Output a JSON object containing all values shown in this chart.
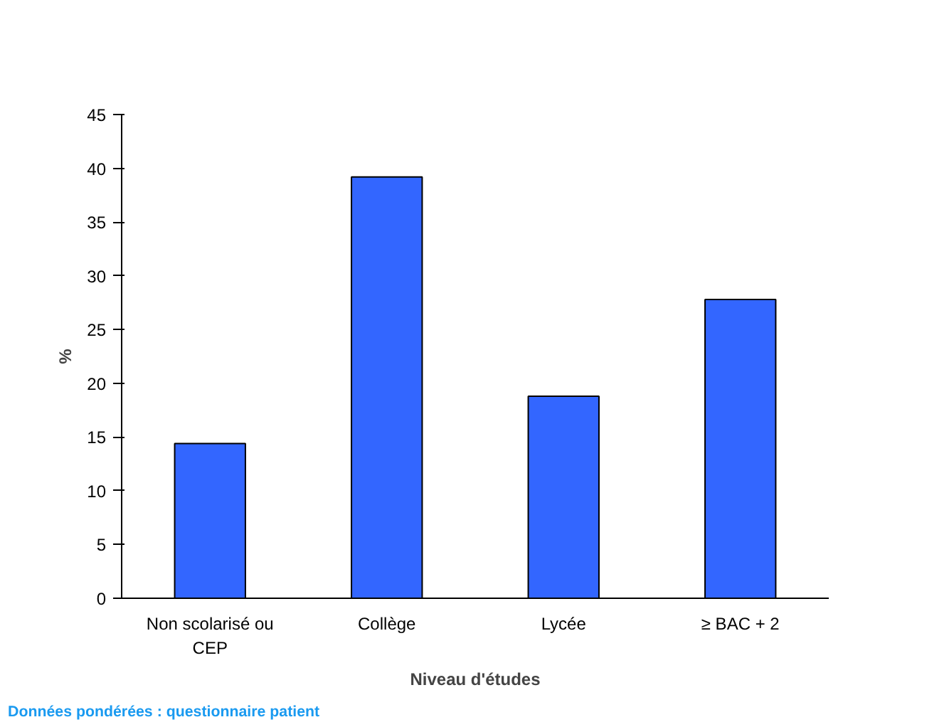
{
  "chart_data": {
    "type": "bar",
    "xlabel": "Niveau d'études",
    "ylabel": "%",
    "categories": [
      "Non scolarisé ou CEP",
      "Collège",
      "Lycée",
      "≥ BAC + 2"
    ],
    "values": [
      14.4,
      39.2,
      18.8,
      27.8
    ],
    "color": "#3366ff",
    "ylim": [
      0,
      45
    ],
    "yticks": [
      0,
      5,
      10,
      15,
      20,
      25,
      30,
      35,
      40,
      45
    ],
    "grid": false,
    "annotations": [
      "Données pondérées : questionnaire patient"
    ]
  }
}
